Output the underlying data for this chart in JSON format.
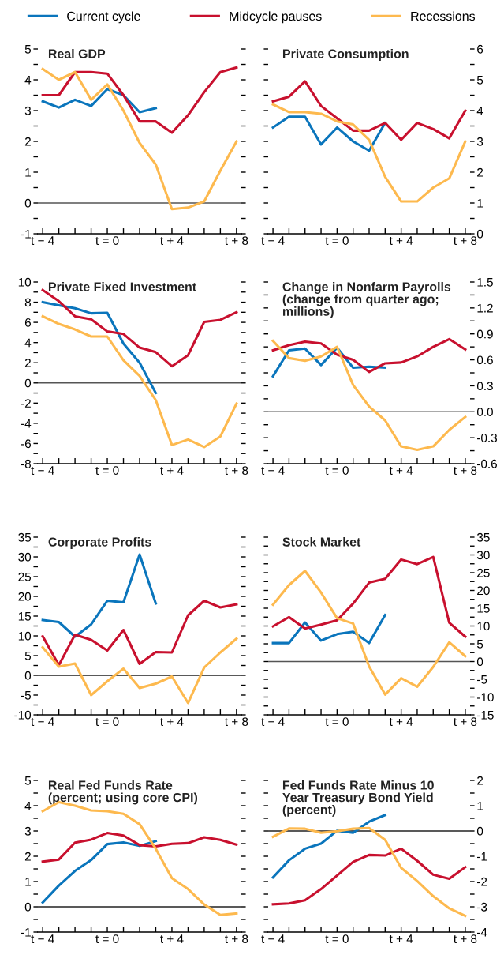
{
  "chart_data": [
    {
      "type": "line",
      "title": "Real GDP",
      "x": [
        -4,
        -3,
        -2,
        -1,
        0,
        1,
        2,
        3,
        4,
        5,
        6,
        7,
        8
      ],
      "xlim": [
        -4.3,
        8.3
      ],
      "xticks": [
        {
          "value": -4,
          "label": "t − 4"
        },
        {
          "value": -3,
          "label": null
        },
        {
          "value": -2,
          "label": null
        },
        {
          "value": -1,
          "label": null
        },
        {
          "value": 0,
          "label": "t = 0"
        },
        {
          "value": 1,
          "label": null
        },
        {
          "value": 2,
          "label": null
        },
        {
          "value": 3,
          "label": null
        },
        {
          "value": 4,
          "label": "t + 4"
        },
        {
          "value": 5,
          "label": null
        },
        {
          "value": 6,
          "label": null
        },
        {
          "value": 7,
          "label": null
        },
        {
          "value": 8,
          "label": "t + 8"
        }
      ],
      "ylim": [
        -1,
        5
      ],
      "yticks": [
        -1,
        {
          "value": -0.5,
          "label": null
        },
        0,
        {
          "value": 0.5,
          "label": null
        },
        1,
        {
          "value": 1.5,
          "label": null
        },
        2,
        {
          "value": 2.5,
          "label": null
        },
        3,
        {
          "value": 3.5,
          "label": null
        },
        4,
        {
          "value": 4.5,
          "label": null
        },
        5
      ],
      "ref_lines": [
        {
          "axis": "y",
          "value": 0,
          "color": "#555555"
        }
      ],
      "legend": "top",
      "grid": false,
      "series": [
        {
          "name": "Current cycle",
          "color": "#0a75bc",
          "values": [
            3.3,
            3.1,
            3.35,
            3.15,
            3.7,
            3.5,
            2.95,
            3.08,
            null,
            null,
            null,
            null,
            null
          ]
        },
        {
          "name": "Midcycle pauses",
          "color": "#c8102e",
          "values": [
            3.5,
            3.5,
            4.25,
            4.25,
            4.2,
            3.5,
            2.65,
            2.65,
            2.28,
            2.85,
            3.6,
            4.25,
            4.4
          ]
        },
        {
          "name": "Recessions",
          "color": "#fdb94e",
          "values": [
            4.35,
            4.0,
            4.25,
            3.35,
            3.85,
            3.0,
            1.95,
            1.25,
            -0.2,
            -0.15,
            0.05,
            1.05,
            2.0
          ]
        }
      ]
    },
    {
      "type": "line",
      "title": "Private Consumption",
      "x": [
        -4,
        -3,
        -2,
        -1,
        0,
        1,
        2,
        3,
        4,
        5,
        6,
        7,
        8
      ],
      "xlim": [
        -4.3,
        8.3
      ],
      "xticks": [
        {
          "value": -4,
          "label": "t − 4"
        },
        {
          "value": -3,
          "label": null
        },
        {
          "value": -2,
          "label": null
        },
        {
          "value": -1,
          "label": null
        },
        {
          "value": 0,
          "label": "t = 0"
        },
        {
          "value": 1,
          "label": null
        },
        {
          "value": 2,
          "label": null
        },
        {
          "value": 3,
          "label": null
        },
        {
          "value": 4,
          "label": "t + 4"
        },
        {
          "value": 5,
          "label": null
        },
        {
          "value": 6,
          "label": null
        },
        {
          "value": 7,
          "label": null
        },
        {
          "value": 8,
          "label": "t + 8"
        }
      ],
      "y2lim": [
        0,
        6
      ],
      "y2ticks": [
        0,
        {
          "value": 0.5,
          "label": null
        },
        1,
        {
          "value": 1.5,
          "label": null
        },
        2,
        {
          "value": 2.5,
          "label": null
        },
        3,
        {
          "value": 3.5,
          "label": null
        },
        4,
        {
          "value": 4.5,
          "label": null
        },
        5,
        {
          "value": 5.5,
          "label": null
        },
        6
      ],
      "grid": false,
      "series": [
        {
          "name": "Current cycle",
          "color": "#0a75bc",
          "axis": "y2",
          "values": [
            3.45,
            3.8,
            3.8,
            2.9,
            3.45,
            3.0,
            2.7,
            3.6,
            null,
            null,
            null,
            null,
            null
          ]
        },
        {
          "name": "Midcycle pauses",
          "color": "#c8102e",
          "axis": "y2",
          "values": [
            4.3,
            4.45,
            4.95,
            4.15,
            3.75,
            3.35,
            3.35,
            3.6,
            3.05,
            3.6,
            3.4,
            3.1,
            4.0
          ]
        },
        {
          "name": "Recessions",
          "color": "#fdb94e",
          "axis": "y2",
          "values": [
            4.2,
            3.95,
            3.95,
            3.9,
            3.65,
            3.55,
            3.05,
            1.85,
            1.05,
            1.05,
            1.5,
            1.8,
            3.0
          ]
        }
      ]
    },
    {
      "type": "line",
      "title": "Private Fixed Investment",
      "x": [
        -4,
        -3,
        -2,
        -1,
        0,
        1,
        2,
        3,
        4,
        5,
        6,
        7,
        8
      ],
      "xlim": [
        -4.3,
        8.3
      ],
      "xticks": [
        {
          "value": -4,
          "label": "t − 4"
        },
        {
          "value": -3,
          "label": null
        },
        {
          "value": -2,
          "label": null
        },
        {
          "value": -1,
          "label": null
        },
        {
          "value": 0,
          "label": "t = 0"
        },
        {
          "value": 1,
          "label": null
        },
        {
          "value": 2,
          "label": null
        },
        {
          "value": 3,
          "label": null
        },
        {
          "value": 4,
          "label": "t + 4"
        },
        {
          "value": 5,
          "label": null
        },
        {
          "value": 6,
          "label": null
        },
        {
          "value": 7,
          "label": null
        },
        {
          "value": 8,
          "label": "t + 8"
        }
      ],
      "ylim": [
        -8,
        10
      ],
      "yticks": [
        -8,
        {
          "value": -7,
          "label": null
        },
        -6,
        {
          "value": -5,
          "label": null
        },
        -4,
        {
          "value": -3,
          "label": null
        },
        -2,
        {
          "value": -1,
          "label": null
        },
        0,
        {
          "value": 1,
          "label": null
        },
        2,
        {
          "value": 3,
          "label": null
        },
        4,
        {
          "value": 5,
          "label": null
        },
        6,
        {
          "value": 7,
          "label": null
        },
        8,
        {
          "value": 9,
          "label": null
        },
        10
      ],
      "ref_lines": [
        {
          "axis": "y",
          "value": 0,
          "color": "#555555"
        }
      ],
      "grid": false,
      "series": [
        {
          "name": "Current cycle",
          "color": "#0a75bc",
          "values": [
            8.0,
            7.7,
            7.4,
            6.9,
            6.95,
            3.9,
            2.0,
            -1.0,
            null,
            null,
            null,
            null,
            null
          ]
        },
        {
          "name": "Midcycle pauses",
          "color": "#c8102e",
          "values": [
            9.2,
            8.1,
            6.6,
            6.3,
            5.1,
            4.85,
            3.5,
            3.05,
            1.65,
            2.75,
            6.05,
            6.25,
            7.0
          ]
        },
        {
          "name": "Recessions",
          "color": "#fdb94e",
          "values": [
            6.6,
            5.85,
            5.3,
            4.6,
            4.6,
            2.25,
            0.7,
            -1.7,
            -6.15,
            -5.6,
            -6.35,
            -5.3,
            -2.05
          ]
        }
      ]
    },
    {
      "type": "line",
      "title": "Change in Nonfarm Payrolls\n(change from quarter ago;\nmillions)",
      "x": [
        -4,
        -3,
        -2,
        -1,
        0,
        1,
        2,
        3,
        4,
        5,
        6,
        7,
        8
      ],
      "xlim": [
        -4.3,
        8.3
      ],
      "xticks": [
        {
          "value": -4,
          "label": "t − 4"
        },
        {
          "value": -3,
          "label": null
        },
        {
          "value": -2,
          "label": null
        },
        {
          "value": -1,
          "label": null
        },
        {
          "value": 0,
          "label": "t = 0"
        },
        {
          "value": 1,
          "label": null
        },
        {
          "value": 2,
          "label": null
        },
        {
          "value": 3,
          "label": null
        },
        {
          "value": 4,
          "label": "t + 4"
        },
        {
          "value": 5,
          "label": null
        },
        {
          "value": 6,
          "label": null
        },
        {
          "value": 7,
          "label": null
        },
        {
          "value": 8,
          "label": "t + 8"
        }
      ],
      "y2lim": [
        -0.6,
        1.5
      ],
      "y2ticks": [
        {
          "value": -0.6,
          "label": "-0.6"
        },
        {
          "value": -0.45,
          "label": null
        },
        {
          "value": -0.3,
          "label": "-0.3"
        },
        {
          "value": -0.15,
          "label": null
        },
        {
          "value": 0,
          "label": "0.0"
        },
        {
          "value": 0.15,
          "label": null
        },
        {
          "value": 0.3,
          "label": "0.3"
        },
        {
          "value": 0.45,
          "label": null
        },
        {
          "value": 0.6,
          "label": "0.6"
        },
        {
          "value": 0.75,
          "label": null
        },
        {
          "value": 0.9,
          "label": "0.9"
        },
        {
          "value": 1.05,
          "label": null
        },
        {
          "value": 1.2,
          "label": "1.2"
        },
        {
          "value": 1.35,
          "label": null
        },
        {
          "value": 1.5,
          "label": "1.5"
        }
      ],
      "ref_lines": [
        {
          "axis": "y2",
          "value": 0,
          "color": "#555555"
        }
      ],
      "grid": false,
      "series": [
        {
          "name": "Current cycle",
          "color": "#0a75bc",
          "axis": "y2",
          "values": [
            0.41,
            0.71,
            0.73,
            0.54,
            0.74,
            0.51,
            0.52,
            0.51,
            null,
            null,
            null,
            null,
            null
          ]
        },
        {
          "name": "Midcycle pauses",
          "color": "#c8102e",
          "axis": "y2",
          "values": [
            0.71,
            0.77,
            0.81,
            0.79,
            0.66,
            0.6,
            0.46,
            0.56,
            0.57,
            0.64,
            0.75,
            0.84,
            0.72
          ]
        },
        {
          "name": "Recessions",
          "color": "#fdb94e",
          "axis": "y2",
          "values": [
            0.82,
            0.62,
            0.59,
            0.64,
            0.75,
            0.31,
            0.06,
            -0.1,
            -0.4,
            -0.44,
            -0.4,
            -0.21,
            -0.06
          ]
        }
      ]
    },
    {
      "type": "line",
      "title": "Corporate Profits",
      "x": [
        -4,
        -3,
        -2,
        -1,
        0,
        1,
        2,
        3,
        4,
        5,
        6,
        7,
        8
      ],
      "xlim": [
        -4.3,
        8.3
      ],
      "xticks": [
        {
          "value": -4,
          "label": "t − 4"
        },
        {
          "value": -3,
          "label": null
        },
        {
          "value": -2,
          "label": null
        },
        {
          "value": -1,
          "label": null
        },
        {
          "value": 0,
          "label": "t = 0"
        },
        {
          "value": 1,
          "label": null
        },
        {
          "value": 2,
          "label": null
        },
        {
          "value": 3,
          "label": null
        },
        {
          "value": 4,
          "label": "t + 4"
        },
        {
          "value": 5,
          "label": null
        },
        {
          "value": 6,
          "label": null
        },
        {
          "value": 7,
          "label": null
        },
        {
          "value": 8,
          "label": "t + 8"
        }
      ],
      "ylim": [
        -10,
        35
      ],
      "yticks": [
        -10,
        {
          "value": -7.5,
          "label": null
        },
        -5,
        {
          "value": -2.5,
          "label": null
        },
        0,
        {
          "value": 2.5,
          "label": null
        },
        5,
        {
          "value": 7.5,
          "label": null
        },
        10,
        {
          "value": 12.5,
          "label": null
        },
        15,
        {
          "value": 17.5,
          "label": null
        },
        20,
        {
          "value": 22.5,
          "label": null
        },
        25,
        {
          "value": 27.5,
          "label": null
        },
        30,
        {
          "value": 32.5,
          "label": null
        },
        35
      ],
      "ref_lines": [
        {
          "axis": "y",
          "value": 0,
          "color": "#222222"
        }
      ],
      "grid": false,
      "series": [
        {
          "name": "Current cycle",
          "color": "#0a75bc",
          "values": [
            14.0,
            13.5,
            9.8,
            12.9,
            18.9,
            18.5,
            30.6,
            18.2,
            null,
            null,
            null,
            null,
            null
          ]
        },
        {
          "name": "Midcycle pauses",
          "color": "#c8102e",
          "values": [
            9.9,
            2.6,
            10.3,
            9.0,
            6.3,
            11.5,
            2.9,
            5.9,
            5.8,
            15.2,
            18.9,
            17.2,
            18.0
          ]
        },
        {
          "name": "Recessions",
          "color": "#fdb94e",
          "values": [
            7.1,
            2.2,
            3.0,
            -5.0,
            -1.5,
            1.7,
            -3.2,
            -2.1,
            -0.3,
            -7.0,
            2.0,
            5.8,
            9.3
          ]
        }
      ]
    },
    {
      "type": "line",
      "title": "Stock Market",
      "x": [
        -4,
        -3,
        -2,
        -1,
        0,
        1,
        2,
        3,
        4,
        5,
        6,
        7,
        8
      ],
      "xlim": [
        -4.3,
        8.3
      ],
      "xticks": [
        {
          "value": -4,
          "label": "t − 4"
        },
        {
          "value": -3,
          "label": null
        },
        {
          "value": -2,
          "label": null
        },
        {
          "value": -1,
          "label": null
        },
        {
          "value": 0,
          "label": "t = 0"
        },
        {
          "value": 1,
          "label": null
        },
        {
          "value": 2,
          "label": null
        },
        {
          "value": 3,
          "label": null
        },
        {
          "value": 4,
          "label": "t + 4"
        },
        {
          "value": 5,
          "label": null
        },
        {
          "value": 6,
          "label": null
        },
        {
          "value": 7,
          "label": null
        },
        {
          "value": 8,
          "label": "t + 8"
        }
      ],
      "y2lim": [
        -15,
        35
      ],
      "y2ticks": [
        -15,
        {
          "value": -12.5,
          "label": null
        },
        -10,
        {
          "value": -7.5,
          "label": null
        },
        -5,
        {
          "value": -2.5,
          "label": null
        },
        0,
        {
          "value": 2.5,
          "label": null
        },
        5,
        {
          "value": 7.5,
          "label": null
        },
        10,
        {
          "value": 12.5,
          "label": null
        },
        15,
        {
          "value": 17.5,
          "label": null
        },
        20,
        {
          "value": 22.5,
          "label": null
        },
        25,
        {
          "value": 27.5,
          "label": null
        },
        30,
        {
          "value": 32.5,
          "label": null
        },
        35
      ],
      "ref_lines": [
        {
          "axis": "y2",
          "value": 0,
          "color": "#555555"
        }
      ],
      "grid": false,
      "series": [
        {
          "name": "Current cycle",
          "color": "#0a75bc",
          "axis": "y2",
          "values": [
            5.2,
            5.2,
            11.0,
            5.9,
            7.7,
            8.4,
            5.2,
            13.1,
            null,
            null,
            null,
            null,
            null
          ]
        },
        {
          "name": "Midcycle pauses",
          "color": "#c8102e",
          "axis": "y2",
          "values": [
            9.9,
            12.5,
            9.3,
            10.4,
            11.6,
            16.3,
            22.2,
            23.3,
            28.7,
            27.4,
            29.4,
            10.9,
            7.0
          ]
        },
        {
          "name": "Recessions",
          "color": "#fdb94e",
          "axis": "y2",
          "values": [
            16.0,
            21.5,
            25.5,
            19.4,
            12.2,
            10.7,
            -1.4,
            -9.3,
            -4.7,
            -7.1,
            -1.5,
            5.4,
            1.5
          ]
        }
      ]
    },
    {
      "type": "line",
      "title": "Real Fed Funds Rate\n(percent; using core CPI)",
      "x": [
        -4,
        -3,
        -2,
        -1,
        0,
        1,
        2,
        3,
        4,
        5,
        6,
        7,
        8
      ],
      "xlim": [
        -4.3,
        8.3
      ],
      "xticks": [
        {
          "value": -4,
          "label": "t − 4"
        },
        {
          "value": -3,
          "label": null
        },
        {
          "value": -2,
          "label": null
        },
        {
          "value": -1,
          "label": null
        },
        {
          "value": 0,
          "label": "t = 0"
        },
        {
          "value": 1,
          "label": null
        },
        {
          "value": 2,
          "label": null
        },
        {
          "value": 3,
          "label": null
        },
        {
          "value": 4,
          "label": "t + 4"
        },
        {
          "value": 5,
          "label": null
        },
        {
          "value": 6,
          "label": null
        },
        {
          "value": 7,
          "label": null
        },
        {
          "value": 8,
          "label": "t + 8"
        }
      ],
      "ylim": [
        -1,
        5
      ],
      "yticks": [
        -1,
        {
          "value": -0.5,
          "label": null
        },
        0,
        {
          "value": 0.5,
          "label": null
        },
        1,
        {
          "value": 1.5,
          "label": null
        },
        2,
        {
          "value": 2.5,
          "label": null
        },
        3,
        {
          "value": 3.5,
          "label": null
        },
        4,
        {
          "value": 4.5,
          "label": null
        },
        5
      ],
      "ref_lines": [
        {
          "axis": "y",
          "value": 0,
          "color": "#222222"
        }
      ],
      "grid": false,
      "series": [
        {
          "name": "Current cycle",
          "color": "#0a75bc",
          "values": [
            0.17,
            0.84,
            1.42,
            1.85,
            2.48,
            2.55,
            2.41,
            2.6,
            null,
            null,
            null,
            null,
            null
          ]
        },
        {
          "name": "Midcycle pauses",
          "color": "#c8102e",
          "values": [
            1.79,
            1.87,
            2.54,
            2.66,
            2.92,
            2.82,
            2.44,
            2.39,
            2.49,
            2.52,
            2.75,
            2.65,
            2.46
          ]
        },
        {
          "name": "Recessions",
          "color": "#fdb94e",
          "values": [
            3.78,
            4.14,
            4.0,
            3.81,
            3.78,
            3.68,
            3.27,
            2.3,
            1.13,
            0.7,
            0.09,
            -0.32,
            -0.26
          ]
        }
      ]
    },
    {
      "type": "line",
      "title": "Fed Funds Rate Minus 10\nYear Treasury Bond Yield\n(percent)",
      "x": [
        -4,
        -3,
        -2,
        -1,
        0,
        1,
        2,
        3,
        4,
        5,
        6,
        7,
        8
      ],
      "xlim": [
        -4.3,
        8.3
      ],
      "xticks": [
        {
          "value": -4,
          "label": "t − 4"
        },
        {
          "value": -3,
          "label": null
        },
        {
          "value": -2,
          "label": null
        },
        {
          "value": -1,
          "label": null
        },
        {
          "value": 0,
          "label": "t = 0"
        },
        {
          "value": 1,
          "label": null
        },
        {
          "value": 2,
          "label": null
        },
        {
          "value": 3,
          "label": null
        },
        {
          "value": 4,
          "label": "t + 4"
        },
        {
          "value": 5,
          "label": null
        },
        {
          "value": 6,
          "label": null
        },
        {
          "value": 7,
          "label": null
        },
        {
          "value": 8,
          "label": "t + 8"
        }
      ],
      "y2lim": [
        -4,
        2
      ],
      "y2ticks": [
        -4,
        {
          "value": -3.5,
          "label": null
        },
        -3,
        {
          "value": -2.5,
          "label": null
        },
        -2,
        {
          "value": -1.5,
          "label": null
        },
        -1,
        {
          "value": -0.5,
          "label": null
        },
        0,
        {
          "value": 0.5,
          "label": null
        },
        1,
        {
          "value": 1.5,
          "label": null
        },
        2
      ],
      "ref_lines": [
        {
          "axis": "y2",
          "value": 0,
          "color": "#222222"
        }
      ],
      "grid": false,
      "series": [
        {
          "name": "Current cycle",
          "color": "#0a75bc",
          "axis": "y2",
          "values": [
            -1.84,
            -1.16,
            -0.7,
            -0.5,
            0.01,
            -0.07,
            0.37,
            0.63,
            null,
            null,
            null,
            null,
            null
          ]
        },
        {
          "name": "Midcycle pauses",
          "color": "#c8102e",
          "axis": "y2",
          "values": [
            -2.9,
            -2.87,
            -2.74,
            -2.3,
            -1.76,
            -1.22,
            -0.95,
            -0.97,
            -0.7,
            -1.18,
            -1.73,
            -1.89,
            -1.43
          ]
        },
        {
          "name": "Recessions",
          "color": "#fdb94e",
          "axis": "y2",
          "values": [
            -0.23,
            0.1,
            0.09,
            -0.07,
            -0.01,
            0.09,
            0.12,
            -0.35,
            -1.46,
            -1.98,
            -2.58,
            -3.06,
            -3.36
          ]
        }
      ]
    }
  ]
}
